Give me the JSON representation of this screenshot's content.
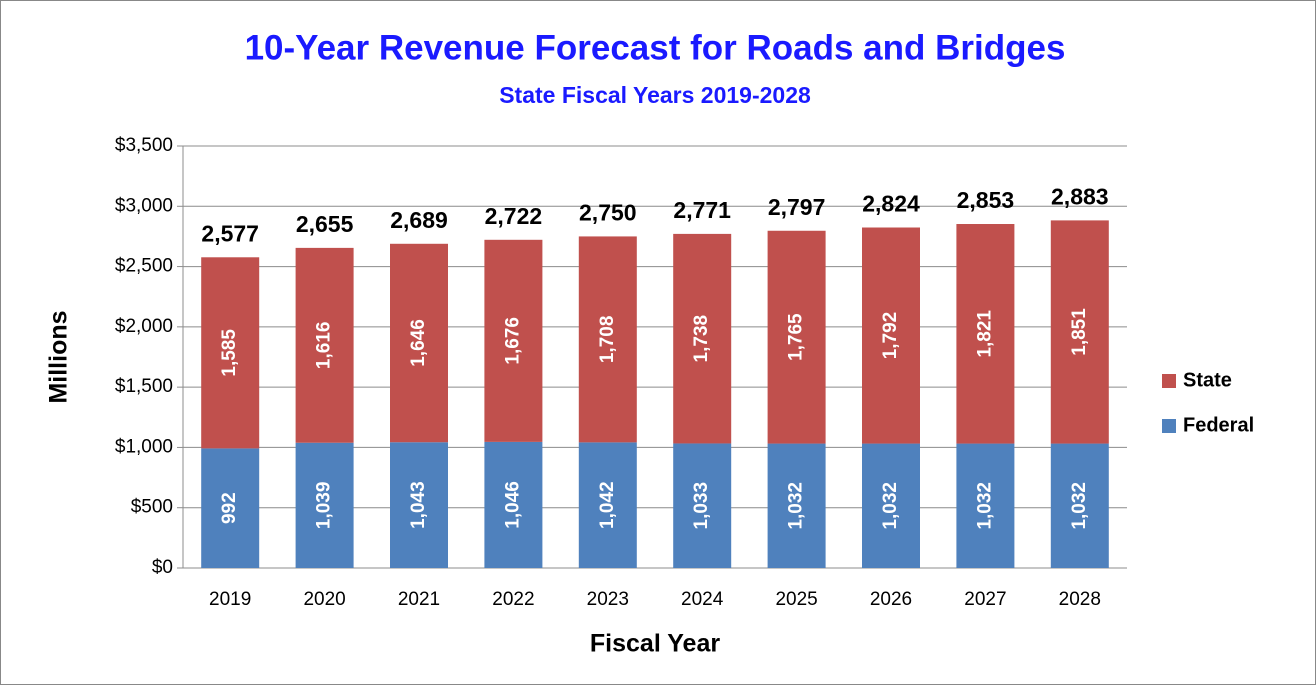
{
  "chart_data": {
    "type": "stacked_bar",
    "title": "10-Year Revenue Forecast for Roads and Bridges",
    "subtitle": "State Fiscal Years 2019-2028",
    "y_label": "Millions",
    "x_label": "Fiscal Year",
    "categories": [
      "2019",
      "2020",
      "2021",
      "2022",
      "2023",
      "2024",
      "2025",
      "2026",
      "2027",
      "2028"
    ],
    "series": [
      {
        "name": "Federal",
        "color": "#4f81bd",
        "values": [
          992,
          1039,
          1043,
          1046,
          1042,
          1033,
          1032,
          1032,
          1032,
          1032
        ],
        "value_labels": [
          "992",
          "1,039",
          "1,043",
          "1,046",
          "1,042",
          "1,033",
          "1,032",
          "1,032",
          "1,032",
          "1,032"
        ]
      },
      {
        "name": "State",
        "color": "#c0504d",
        "values": [
          1585,
          1616,
          1646,
          1676,
          1708,
          1738,
          1765,
          1792,
          1821,
          1851
        ],
        "value_labels": [
          "1,585",
          "1,616",
          "1,646",
          "1,676",
          "1,708",
          "1,738",
          "1,765",
          "1,792",
          "1,821",
          "1,851"
        ]
      }
    ],
    "totals": [
      2577,
      2655,
      2689,
      2722,
      2750,
      2771,
      2797,
      2824,
      2853,
      2883
    ],
    "total_labels": [
      "2,577",
      "2,655",
      "2,689",
      "2,722",
      "2,750",
      "2,771",
      "2,797",
      "2,824",
      "2,853",
      "2,883"
    ],
    "ylim": [
      0,
      3500
    ],
    "yticks": [
      {
        "value": 0,
        "label": "$0"
      },
      {
        "value": 500,
        "label": "$500"
      },
      {
        "value": 1000,
        "label": "$1,000"
      },
      {
        "value": 1500,
        "label": "$1,500"
      },
      {
        "value": 2000,
        "label": "$2,000"
      },
      {
        "value": 2500,
        "label": "$2,500"
      },
      {
        "value": 3000,
        "label": "$3,000"
      },
      {
        "value": 3500,
        "label": "$3,500"
      }
    ],
    "grid": true,
    "legend": "right"
  }
}
